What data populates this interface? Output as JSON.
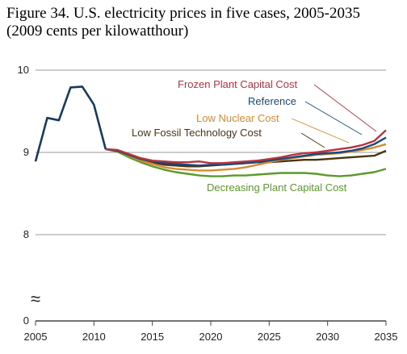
{
  "figure": {
    "title": "Figure 34. U.S. electricity prices in five cases, 2005-2035",
    "subtitle": "(2009 cents per kilowatthour)"
  },
  "chart_data": {
    "type": "line",
    "xlim": [
      2005,
      2035
    ],
    "ylim_visible": [
      8,
      10
    ],
    "ylim_axis": [
      0,
      10
    ],
    "axis_break": true,
    "x_ticks": [
      "2005",
      "2010",
      "2015",
      "2020",
      "2025",
      "2030",
      "2035"
    ],
    "y_ticks": [
      "10",
      "9",
      "8",
      "0"
    ],
    "grid": "horizontal",
    "x": [
      2005,
      2006,
      2007,
      2008,
      2009,
      2010,
      2011,
      2012,
      2013,
      2014,
      2015,
      2016,
      2017,
      2018,
      2019,
      2020,
      2021,
      2022,
      2023,
      2024,
      2025,
      2026,
      2027,
      2028,
      2029,
      2030,
      2031,
      2032,
      2033,
      2034,
      2035
    ],
    "history": {
      "x": [
        2005,
        2006,
        2007,
        2008,
        2009,
        2010,
        2011
      ],
      "values": [
        8.89,
        9.42,
        9.39,
        9.79,
        9.8,
        9.58,
        9.04
      ],
      "color": "#173a5e"
    },
    "series": [
      {
        "name": "Frozen Plant Capital Cost",
        "color": "#b8323f",
        "values": [
          null,
          null,
          null,
          null,
          null,
          null,
          9.04,
          9.03,
          8.98,
          8.93,
          8.9,
          8.89,
          8.88,
          8.88,
          8.89,
          8.87,
          8.87,
          8.88,
          8.89,
          8.9,
          8.92,
          8.94,
          8.97,
          8.99,
          9.0,
          9.02,
          9.04,
          9.06,
          9.09,
          9.14,
          9.27
        ]
      },
      {
        "name": "Reference",
        "color": "#174a7c",
        "values": [
          null,
          null,
          null,
          null,
          null,
          null,
          9.04,
          9.02,
          8.97,
          8.92,
          8.89,
          8.87,
          8.86,
          8.85,
          8.84,
          8.85,
          8.85,
          8.86,
          8.87,
          8.88,
          8.9,
          8.92,
          8.94,
          8.96,
          8.98,
          8.99,
          9.0,
          9.02,
          9.05,
          9.1,
          9.18
        ]
      },
      {
        "name": "Low Nuclear Cost",
        "color": "#d88a2f",
        "values": [
          null,
          null,
          null,
          null,
          null,
          null,
          9.04,
          9.02,
          8.96,
          8.9,
          8.86,
          8.82,
          8.8,
          8.79,
          8.78,
          8.78,
          8.79,
          8.8,
          8.82,
          8.85,
          8.88,
          8.91,
          8.93,
          8.95,
          8.97,
          8.98,
          8.99,
          9.01,
          9.03,
          9.06,
          9.1
        ]
      },
      {
        "name": "Low Fossil Technology Cost",
        "color": "#4a3512",
        "values": [
          null,
          null,
          null,
          null,
          null,
          null,
          9.04,
          9.02,
          8.97,
          8.92,
          8.88,
          8.85,
          8.84,
          8.83,
          8.83,
          8.84,
          8.85,
          8.86,
          8.87,
          8.88,
          8.88,
          8.89,
          8.9,
          8.91,
          8.91,
          8.92,
          8.93,
          8.94,
          8.95,
          8.96,
          9.02
        ]
      },
      {
        "name": "Decreasing Plant Capital Cost",
        "color": "#5a9a2c",
        "values": [
          null,
          null,
          null,
          null,
          null,
          null,
          9.04,
          9.01,
          8.94,
          8.88,
          8.83,
          8.79,
          8.76,
          8.74,
          8.72,
          8.71,
          8.71,
          8.72,
          8.72,
          8.73,
          8.74,
          8.75,
          8.75,
          8.75,
          8.74,
          8.72,
          8.71,
          8.72,
          8.74,
          8.76,
          8.8
        ]
      }
    ],
    "labels": [
      {
        "text": "Frozen Plant Capital Cost",
        "color": "#b8323f"
      },
      {
        "text": "Reference",
        "color": "#174a7c"
      },
      {
        "text": "Low Nuclear Cost",
        "color": "#d88a2f"
      },
      {
        "text": "Low Fossil Technology Cost",
        "color": "#4a3512"
      },
      {
        "text": "Decreasing Plant Capital Cost",
        "color": "#5a9a2c"
      }
    ],
    "axis_break_symbol": "≈"
  }
}
